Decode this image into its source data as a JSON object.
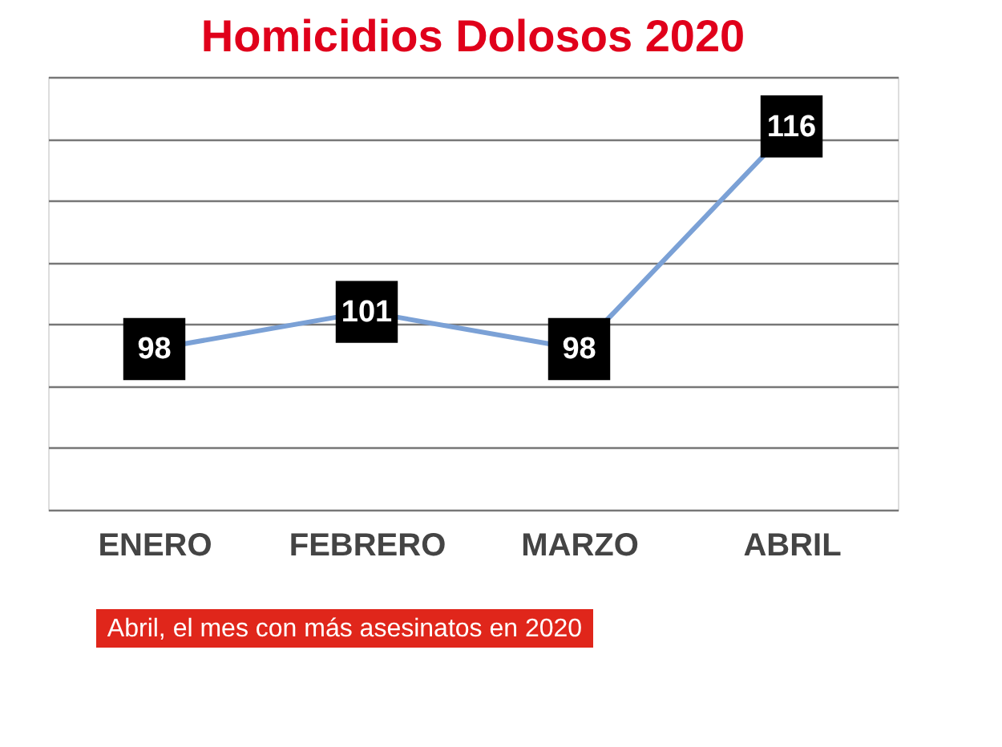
{
  "chart_data": {
    "type": "line",
    "title": "Homicidios Dolosos 2020",
    "categories": [
      "ENERO",
      "FEBRERO",
      "MARZO",
      "ABRIL"
    ],
    "series": [
      {
        "color": "#7ba1d6",
        "values": [
          98,
          101,
          98,
          116
        ]
      }
    ],
    "ylim": [
      85,
      120
    ],
    "yticks": [
      {
        "value": 85,
        "label": null
      },
      {
        "value": 90,
        "label": null
      },
      {
        "value": 95,
        "label": null
      },
      {
        "value": 100,
        "label": null
      },
      {
        "value": 105,
        "label": null
      },
      {
        "value": 110,
        "label": null
      },
      {
        "value": 115,
        "label": null
      },
      {
        "value": 120,
        "label": null
      }
    ],
    "grid": "y",
    "tick_labels": "x",
    "data_labels": true,
    "marker": "square",
    "annotations": [
      "Abril, el mes con más asesinatos en 2020"
    ]
  }
}
